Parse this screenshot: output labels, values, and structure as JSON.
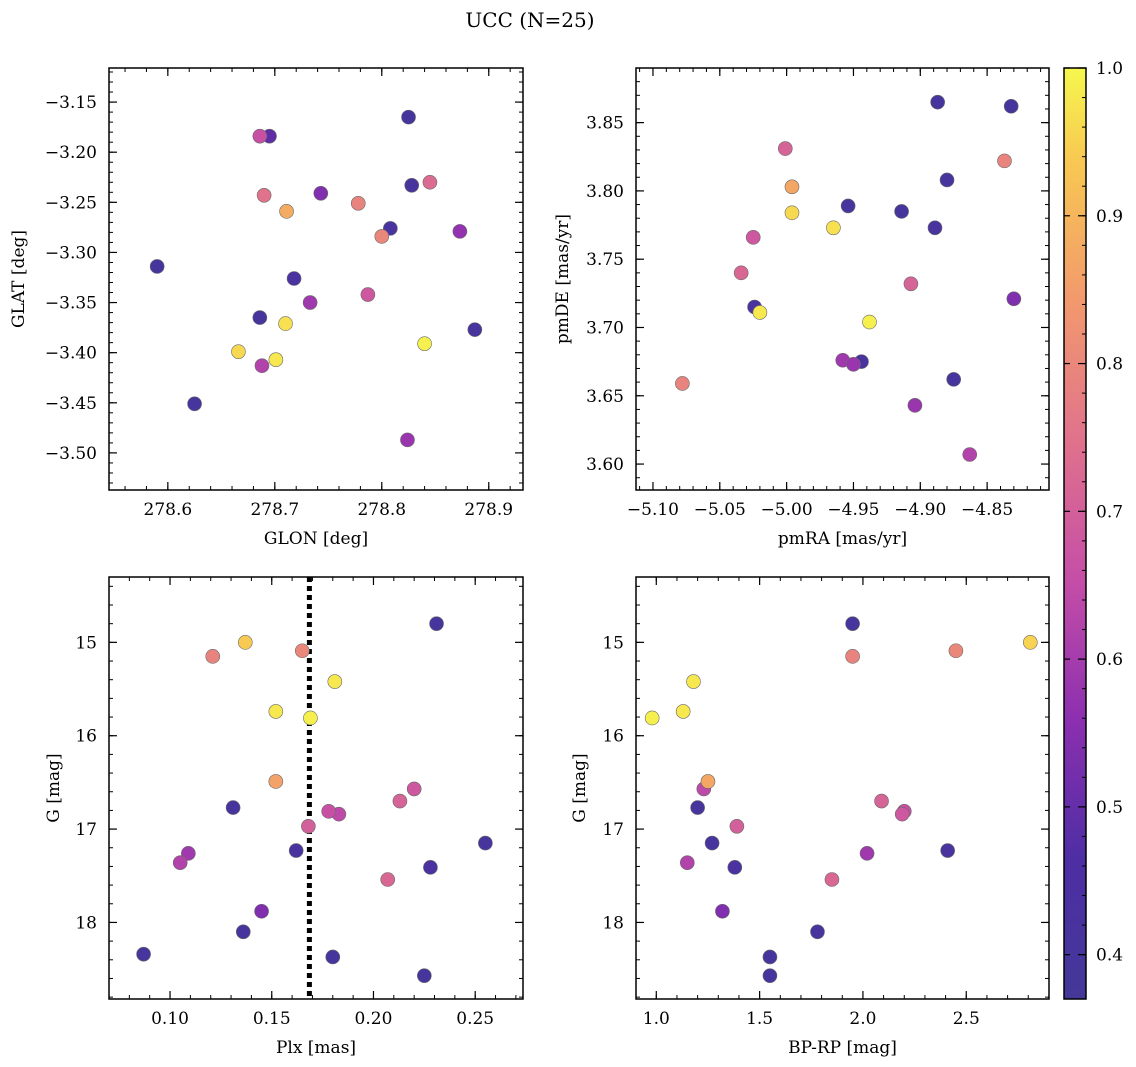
{
  "figure": {
    "title": "UCC (N=25)"
  },
  "colorbar": {
    "range": [
      0.37,
      1.0
    ],
    "ticks": [
      0.4,
      0.5,
      0.6,
      0.7,
      0.8,
      0.9,
      1.0
    ],
    "ticklabels": [
      "0.4",
      "0.5",
      "0.6",
      "0.7",
      "0.8",
      "0.9",
      "1.0"
    ],
    "colormap": "plasma"
  },
  "chart_data": [
    {
      "type": "scatter",
      "xlabel": "GLON [deg]",
      "ylabel": "GLAT [deg]",
      "xlim": [
        278.545,
        278.932
      ],
      "ylim": [
        -3.537,
        -3.116
      ],
      "xticks": [
        278.6,
        278.7,
        278.8,
        278.9
      ],
      "xticklabels": [
        "278.6",
        "278.7",
        "278.8",
        "278.9"
      ],
      "yticks": [
        -3.5,
        -3.45,
        -3.4,
        -3.35,
        -3.3,
        -3.25,
        -3.2,
        -3.15
      ],
      "yticklabels": [
        "−3.50",
        "−3.45",
        "−3.40",
        "−3.35",
        "−3.30",
        "−3.25",
        "−3.20",
        "−3.15"
      ],
      "xminor": 0.02,
      "yminor": 0.01,
      "points": [
        {
          "x": 278.825,
          "y": -3.165,
          "c": 0.4
        },
        {
          "x": 278.828,
          "y": -3.233,
          "c": 0.41
        },
        {
          "x": 278.808,
          "y": -3.276,
          "c": 0.42
        },
        {
          "x": 278.59,
          "y": -3.314,
          "c": 0.4
        },
        {
          "x": 278.625,
          "y": -3.451,
          "c": 0.4
        },
        {
          "x": 278.695,
          "y": -3.184,
          "c": 0.49
        },
        {
          "x": 278.686,
          "y": -3.365,
          "c": 0.41
        },
        {
          "x": 278.718,
          "y": -3.326,
          "c": 0.43
        },
        {
          "x": 278.887,
          "y": -3.377,
          "c": 0.41
        },
        {
          "x": 278.743,
          "y": -3.241,
          "c": 0.54
        },
        {
          "x": 278.733,
          "y": -3.35,
          "c": 0.59
        },
        {
          "x": 278.873,
          "y": -3.279,
          "c": 0.57
        },
        {
          "x": 278.824,
          "y": -3.487,
          "c": 0.58
        },
        {
          "x": 278.688,
          "y": -3.413,
          "c": 0.62
        },
        {
          "x": 278.686,
          "y": -3.184,
          "c": 0.66
        },
        {
          "x": 278.787,
          "y": -3.342,
          "c": 0.68
        },
        {
          "x": 278.845,
          "y": -3.23,
          "c": 0.73
        },
        {
          "x": 278.69,
          "y": -3.243,
          "c": 0.75
        },
        {
          "x": 278.778,
          "y": -3.251,
          "c": 0.79
        },
        {
          "x": 278.8,
          "y": -3.284,
          "c": 0.8
        },
        {
          "x": 278.711,
          "y": -3.259,
          "c": 0.88
        },
        {
          "x": 278.666,
          "y": -3.399,
          "c": 0.96
        },
        {
          "x": 278.71,
          "y": -3.371,
          "c": 0.97
        },
        {
          "x": 278.701,
          "y": -3.407,
          "c": 0.98
        },
        {
          "x": 278.84,
          "y": -3.391,
          "c": 0.99
        }
      ]
    },
    {
      "type": "scatter",
      "xlabel": "pmRA [mas/yr]",
      "ylabel": "pmDE [mas/yr]",
      "xlim": [
        -5.1127,
        -4.8037
      ],
      "ylim": [
        3.581,
        3.89
      ],
      "xticks": [
        -5.1,
        -5.05,
        -5.0,
        -4.95,
        -4.9,
        -4.85
      ],
      "xticklabels": [
        "−5.10",
        "−5.05",
        "−5.00",
        "−4.95",
        "−4.90",
        "−4.85"
      ],
      "yticks": [
        3.6,
        3.65,
        3.7,
        3.75,
        3.8,
        3.85
      ],
      "yticklabels": [
        "3.60",
        "3.65",
        "3.70",
        "3.75",
        "3.80",
        "3.85"
      ],
      "xminor": 0.01,
      "yminor": 0.01,
      "points": [
        {
          "x": -4.887,
          "y": 3.865,
          "c": 0.4
        },
        {
          "x": -4.832,
          "y": 3.862,
          "c": 0.4
        },
        {
          "x": -4.88,
          "y": 3.808,
          "c": 0.41
        },
        {
          "x": -4.914,
          "y": 3.785,
          "c": 0.4
        },
        {
          "x": -4.954,
          "y": 3.789,
          "c": 0.41
        },
        {
          "x": -4.889,
          "y": 3.773,
          "c": 0.42
        },
        {
          "x": -5.024,
          "y": 3.715,
          "c": 0.42
        },
        {
          "x": -4.944,
          "y": 3.675,
          "c": 0.42
        },
        {
          "x": -4.875,
          "y": 3.662,
          "c": 0.4
        },
        {
          "x": -4.83,
          "y": 3.721,
          "c": 0.54
        },
        {
          "x": -4.958,
          "y": 3.676,
          "c": 0.59
        },
        {
          "x": -4.95,
          "y": 3.673,
          "c": 0.58
        },
        {
          "x": -4.904,
          "y": 3.643,
          "c": 0.58
        },
        {
          "x": -4.863,
          "y": 3.607,
          "c": 0.62
        },
        {
          "x": -5.025,
          "y": 3.766,
          "c": 0.68
        },
        {
          "x": -4.907,
          "y": 3.732,
          "c": 0.71
        },
        {
          "x": -5.034,
          "y": 3.74,
          "c": 0.72
        },
        {
          "x": -5.001,
          "y": 3.831,
          "c": 0.71
        },
        {
          "x": -4.837,
          "y": 3.822,
          "c": 0.79
        },
        {
          "x": -5.078,
          "y": 3.659,
          "c": 0.79
        },
        {
          "x": -4.996,
          "y": 3.803,
          "c": 0.87
        },
        {
          "x": -4.996,
          "y": 3.784,
          "c": 0.96
        },
        {
          "x": -4.965,
          "y": 3.773,
          "c": 0.97
        },
        {
          "x": -5.02,
          "y": 3.711,
          "c": 0.98
        },
        {
          "x": -4.938,
          "y": 3.704,
          "c": 0.99
        }
      ]
    },
    {
      "type": "scatter",
      "xlabel": "Plx [mas]",
      "ylabel": "G [mag]",
      "xlim": [
        0.07,
        0.2735
      ],
      "ylim": [
        18.82,
        14.3
      ],
      "yinverted": true,
      "vline": {
        "x": 0.1685,
        "style": "dotted"
      },
      "xticks": [
        0.1,
        0.15,
        0.2,
        0.25
      ],
      "xticklabels": [
        "0.10",
        "0.15",
        "0.20",
        "0.25"
      ],
      "yticks": [
        15,
        16,
        17,
        18
      ],
      "yticklabels": [
        "15",
        "16",
        "17",
        "18"
      ],
      "xminor": 0.01,
      "yminor": 0.2,
      "points": [
        {
          "x": 0.231,
          "y": 14.8,
          "c": 0.4
        },
        {
          "x": 0.131,
          "y": 16.77,
          "c": 0.41
        },
        {
          "x": 0.162,
          "y": 17.23,
          "c": 0.42
        },
        {
          "x": 0.255,
          "y": 17.15,
          "c": 0.41
        },
        {
          "x": 0.228,
          "y": 17.41,
          "c": 0.43
        },
        {
          "x": 0.136,
          "y": 18.1,
          "c": 0.41
        },
        {
          "x": 0.087,
          "y": 18.34,
          "c": 0.41
        },
        {
          "x": 0.18,
          "y": 18.37,
          "c": 0.4
        },
        {
          "x": 0.225,
          "y": 18.57,
          "c": 0.4
        },
        {
          "x": 0.145,
          "y": 17.88,
          "c": 0.54
        },
        {
          "x": 0.109,
          "y": 17.26,
          "c": 0.59
        },
        {
          "x": 0.105,
          "y": 17.36,
          "c": 0.62
        },
        {
          "x": 0.183,
          "y": 16.84,
          "c": 0.64
        },
        {
          "x": 0.178,
          "y": 16.81,
          "c": 0.66
        },
        {
          "x": 0.22,
          "y": 16.57,
          "c": 0.68
        },
        {
          "x": 0.168,
          "y": 16.97,
          "c": 0.7
        },
        {
          "x": 0.213,
          "y": 16.7,
          "c": 0.71
        },
        {
          "x": 0.207,
          "y": 17.54,
          "c": 0.72
        },
        {
          "x": 0.121,
          "y": 15.15,
          "c": 0.79
        },
        {
          "x": 0.165,
          "y": 15.09,
          "c": 0.8
        },
        {
          "x": 0.152,
          "y": 16.49,
          "c": 0.86
        },
        {
          "x": 0.137,
          "y": 15.0,
          "c": 0.94
        },
        {
          "x": 0.181,
          "y": 15.42,
          "c": 0.98
        },
        {
          "x": 0.152,
          "y": 15.74,
          "c": 0.98
        },
        {
          "x": 0.169,
          "y": 15.81,
          "c": 0.99
        }
      ]
    },
    {
      "type": "scatter",
      "xlabel": "BP-RP [mag]",
      "ylabel": "G [mag]",
      "xlim": [
        0.9018,
        2.9004
      ],
      "ylim": [
        18.82,
        14.3
      ],
      "yinverted": true,
      "xticks": [
        1.0,
        1.5,
        2.0,
        2.5
      ],
      "xticklabels": [
        "1.0",
        "1.5",
        "2.0",
        "2.5"
      ],
      "yticks": [
        15,
        16,
        17,
        18
      ],
      "yticklabels": [
        "15",
        "16",
        "17",
        "18"
      ],
      "xminor": 0.1,
      "yminor": 0.2,
      "points": [
        {
          "x": 1.95,
          "y": 14.8,
          "c": 0.4
        },
        {
          "x": 1.2,
          "y": 16.77,
          "c": 0.41
        },
        {
          "x": 1.27,
          "y": 17.15,
          "c": 0.41
        },
        {
          "x": 1.38,
          "y": 17.41,
          "c": 0.43
        },
        {
          "x": 2.41,
          "y": 17.23,
          "c": 0.42
        },
        {
          "x": 1.78,
          "y": 18.1,
          "c": 0.41
        },
        {
          "x": 1.55,
          "y": 18.37,
          "c": 0.4
        },
        {
          "x": 1.55,
          "y": 18.57,
          "c": 0.4
        },
        {
          "x": 1.32,
          "y": 17.88,
          "c": 0.54
        },
        {
          "x": 2.02,
          "y": 17.26,
          "c": 0.59
        },
        {
          "x": 1.15,
          "y": 17.36,
          "c": 0.62
        },
        {
          "x": 1.23,
          "y": 16.57,
          "c": 0.64
        },
        {
          "x": 2.2,
          "y": 16.81,
          "c": 0.66
        },
        {
          "x": 2.19,
          "y": 16.84,
          "c": 0.68
        },
        {
          "x": 1.39,
          "y": 16.97,
          "c": 0.7
        },
        {
          "x": 2.09,
          "y": 16.7,
          "c": 0.71
        },
        {
          "x": 1.85,
          "y": 17.54,
          "c": 0.72
        },
        {
          "x": 1.95,
          "y": 15.15,
          "c": 0.79
        },
        {
          "x": 2.45,
          "y": 15.09,
          "c": 0.8
        },
        {
          "x": 1.25,
          "y": 16.49,
          "c": 0.87
        },
        {
          "x": 2.81,
          "y": 15.0,
          "c": 0.95
        },
        {
          "x": 1.18,
          "y": 15.42,
          "c": 0.98
        },
        {
          "x": 1.13,
          "y": 15.74,
          "c": 0.98
        },
        {
          "x": 0.98,
          "y": 15.81,
          "c": 0.99
        }
      ]
    }
  ]
}
